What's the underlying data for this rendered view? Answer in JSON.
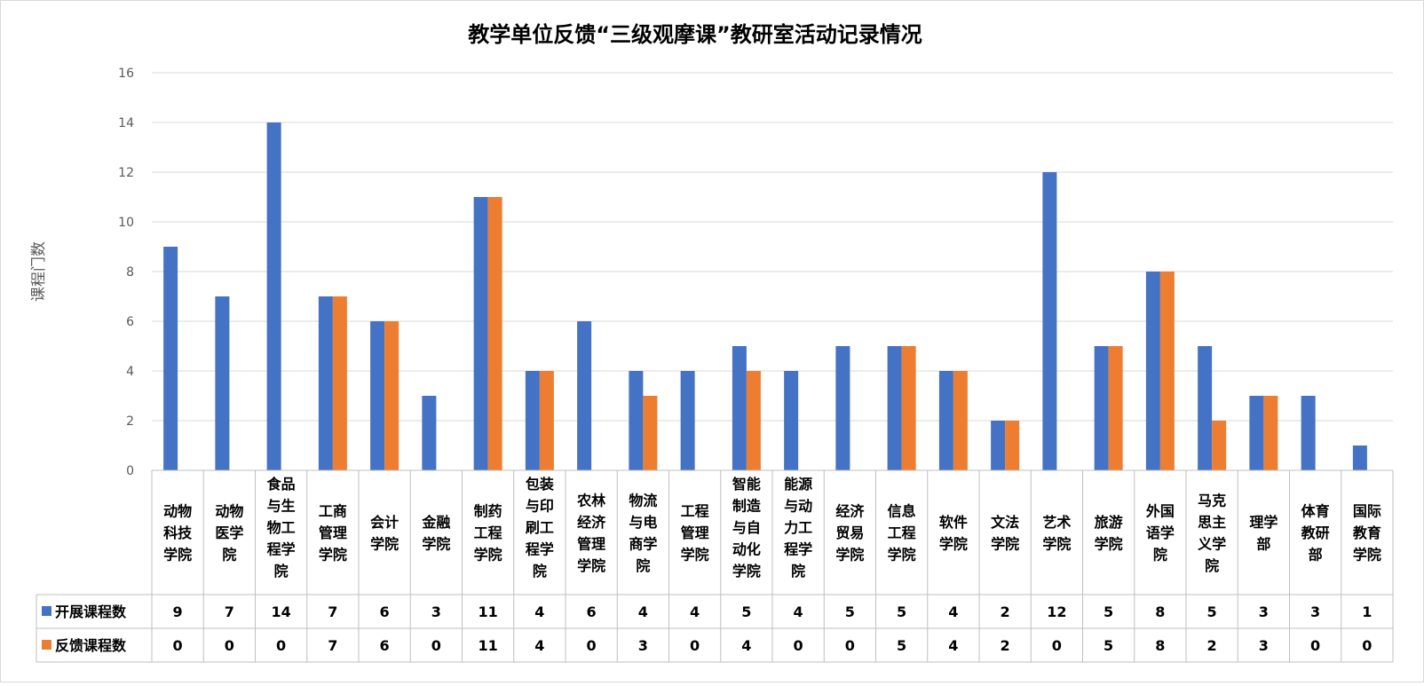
{
  "chart_data": {
    "type": "bar",
    "title": "教学单位反馈“三级观摩课”教研室活动记录情况",
    "ylabel": "课程门数",
    "ylim": [
      0,
      16
    ],
    "yticks": [
      0,
      2,
      4,
      6,
      8,
      10,
      12,
      14,
      16
    ],
    "grid": true,
    "legend": "data-table",
    "categories": [
      "动物科技学院",
      "动物医学院",
      "食品与生物工程学院",
      "工商管理学院",
      "会计学院",
      "金融学院",
      "制药工程学院",
      "包装与印刷工程学院",
      "农林经济管理学院",
      "物流与电商学院",
      "工程管理学院",
      "智能制造与自动化学院",
      "能源与动力工程学院",
      "经济贸易学院",
      "信息工程学院",
      "软件学院",
      "文法学院",
      "艺术学院",
      "旅游学院",
      "外国语学院",
      "马克思主义学院",
      "理学部",
      "体育教研部",
      "国际教育学院"
    ],
    "category_lines": [
      [
        "动物",
        "科技",
        "学院"
      ],
      [
        "动物",
        "医学",
        "院"
      ],
      [
        "食品",
        "与生",
        "物工",
        "程学",
        "院"
      ],
      [
        "工商",
        "管理",
        "学院"
      ],
      [
        "会计",
        "学院"
      ],
      [
        "金融",
        "学院"
      ],
      [
        "制药",
        "工程",
        "学院"
      ],
      [
        "包装",
        "与印",
        "刷工",
        "程学",
        "院"
      ],
      [
        "农林",
        "经济",
        "管理",
        "学院"
      ],
      [
        "物流",
        "与电",
        "商学",
        "院"
      ],
      [
        "工程",
        "管理",
        "学院"
      ],
      [
        "智能",
        "制造",
        "与自",
        "动化",
        "学院"
      ],
      [
        "能源",
        "与动",
        "力工",
        "程学",
        "院"
      ],
      [
        "经济",
        "贸易",
        "学院"
      ],
      [
        "信息",
        "工程",
        "学院"
      ],
      [
        "软件",
        "学院"
      ],
      [
        "文法",
        "学院"
      ],
      [
        "艺术",
        "学院"
      ],
      [
        "旅游",
        "学院"
      ],
      [
        "外国",
        "语学",
        "院"
      ],
      [
        "马克",
        "思主",
        "义学",
        "院"
      ],
      [
        "理学",
        "部"
      ],
      [
        "体育",
        "教研",
        "部"
      ],
      [
        "国际",
        "教育",
        "学院"
      ]
    ],
    "series": [
      {
        "name": "开展课程数",
        "color": "#4472c4",
        "values": [
          9,
          7,
          14,
          7,
          6,
          3,
          11,
          4,
          6,
          4,
          4,
          5,
          4,
          5,
          5,
          4,
          2,
          12,
          5,
          8,
          5,
          3,
          3,
          1
        ]
      },
      {
        "name": "反馈课程数",
        "color": "#ed7d31",
        "values": [
          0,
          0,
          0,
          7,
          6,
          0,
          11,
          4,
          0,
          3,
          0,
          4,
          0,
          0,
          5,
          4,
          2,
          0,
          5,
          8,
          2,
          3,
          0,
          0
        ]
      }
    ]
  }
}
